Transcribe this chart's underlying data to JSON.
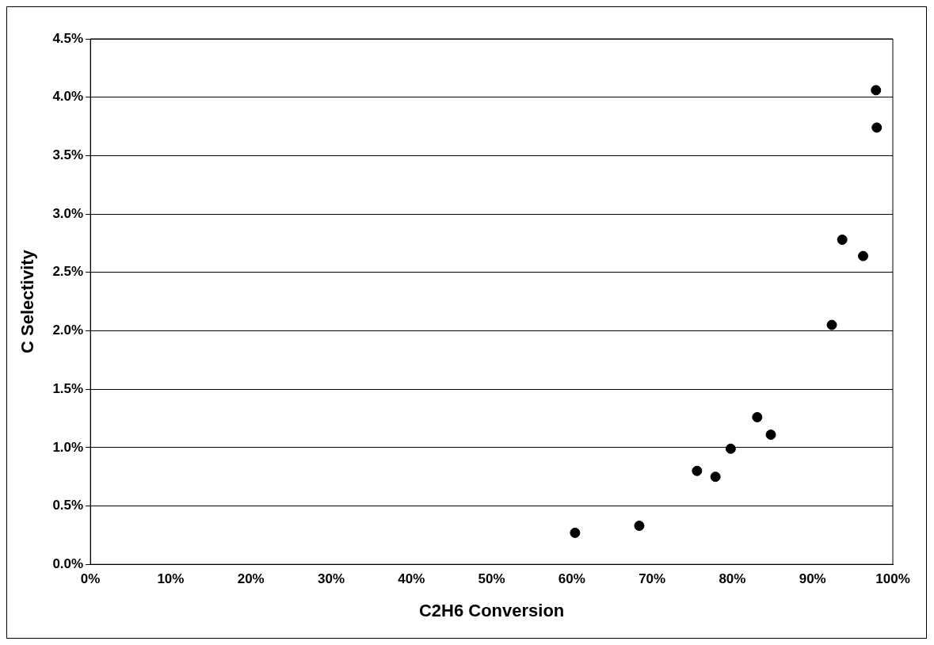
{
  "chart_data": {
    "type": "scatter",
    "xlabel": "C2H6 Conversion",
    "ylabel": "C Selectivity",
    "x": [
      60.4,
      68.4,
      75.6,
      77.9,
      79.8,
      83.1,
      84.8,
      92.4,
      93.7,
      96.3,
      97.9,
      98.0
    ],
    "values": [
      0.27,
      0.33,
      0.8,
      0.75,
      0.99,
      1.26,
      1.11,
      2.05,
      2.78,
      2.64,
      4.06,
      3.74
    ],
    "color": "#000000",
    "marker": "circle",
    "xlim": [
      0,
      100
    ],
    "xticks": [
      {
        "value": 0,
        "label": "0%"
      },
      {
        "value": 10,
        "label": "10%"
      },
      {
        "value": 20,
        "label": "20%"
      },
      {
        "value": 30,
        "label": "30%"
      },
      {
        "value": 40,
        "label": "40%"
      },
      {
        "value": 50,
        "label": "50%"
      },
      {
        "value": 60,
        "label": "60%"
      },
      {
        "value": 70,
        "label": "70%"
      },
      {
        "value": 80,
        "label": "80%"
      },
      {
        "value": 90,
        "label": "90%"
      },
      {
        "value": 100,
        "label": "100%"
      }
    ],
    "ylim": [
      0,
      4.5
    ],
    "yticks": [
      {
        "value": 0,
        "label": "0.0%"
      },
      {
        "value": 0.5,
        "label": "0.5%"
      },
      {
        "value": 1,
        "label": "1.0%"
      },
      {
        "value": 1.5,
        "label": "1.5%"
      },
      {
        "value": 2,
        "label": "2.0%"
      },
      {
        "value": 2.5,
        "label": "2.5%"
      },
      {
        "value": 3,
        "label": "3.0%"
      },
      {
        "value": 3.5,
        "label": "3.5%"
      },
      {
        "value": 4,
        "label": "4.0%"
      },
      {
        "value": 4.5,
        "label": "4.5%"
      }
    ],
    "grid": "y",
    "legend": false
  }
}
